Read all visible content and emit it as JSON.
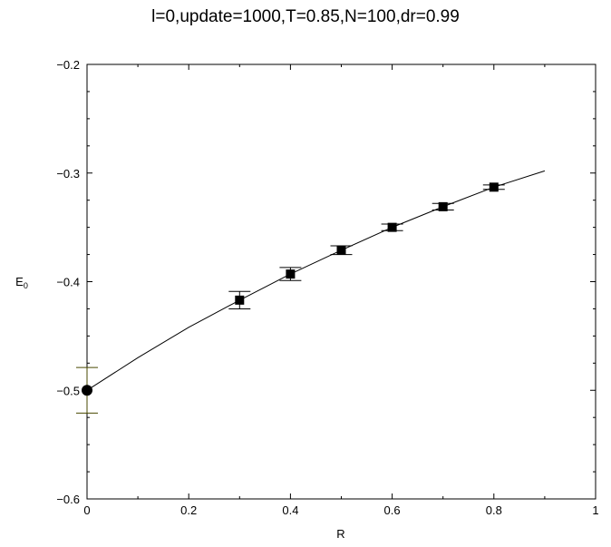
{
  "chart_data": {
    "type": "scatter",
    "title": "l=0,update=1000,T=0.85,N=100,dr=0.99",
    "xlabel": "R",
    "ylabel": "E",
    "ylabel_sub": "0",
    "xlim": [
      0,
      1
    ],
    "ylim": [
      -0.6,
      -0.2
    ],
    "xticks": [
      0,
      0.2,
      0.4,
      0.6,
      0.8,
      1
    ],
    "xtick_labels": [
      "0",
      "0.2",
      "0.4",
      "0.6",
      "0.8",
      "1"
    ],
    "yticks": [
      -0.6,
      -0.5,
      -0.4,
      -0.3,
      -0.2
    ],
    "ytick_labels": [
      "−0.6",
      "−0.5",
      "−0.4",
      "−0.3",
      "−0.2"
    ],
    "grid": false,
    "series": [
      {
        "marker": "square",
        "color": "#000000",
        "x": [
          0.3,
          0.4,
          0.5,
          0.6,
          0.7,
          0.8
        ],
        "y": [
          -0.417,
          -0.393,
          -0.371,
          -0.35,
          -0.331,
          -0.313
        ],
        "yerr": [
          0.008,
          0.006,
          0.004,
          0.003,
          0.003,
          0.002
        ]
      },
      {
        "marker": "circle",
        "color": "#000000",
        "errorbar_color": "#4a4a00",
        "x": [
          0
        ],
        "y": [
          -0.5
        ],
        "yerr": [
          0.021
        ]
      },
      {
        "type": "line",
        "color": "#000000",
        "x": [
          0,
          0.1,
          0.2,
          0.3,
          0.4,
          0.5,
          0.6,
          0.7,
          0.8,
          0.9
        ],
        "y": [
          -0.5,
          -0.47,
          -0.442,
          -0.417,
          -0.393,
          -0.371,
          -0.35,
          -0.331,
          -0.313,
          -0.298
        ]
      }
    ]
  }
}
